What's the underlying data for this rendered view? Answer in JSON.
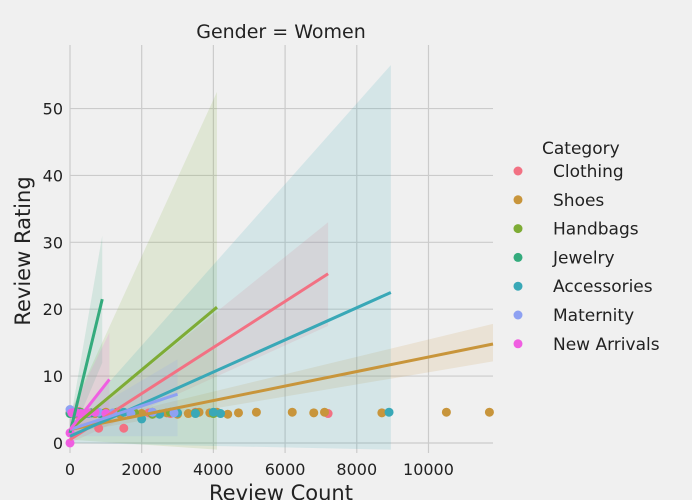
{
  "chart_data": {
    "type": "scatter",
    "title": "Gender = Women",
    "xlabel": "Review Count",
    "ylabel": "Review Rating",
    "xlim": [
      0,
      11800
    ],
    "ylim": [
      -1.5,
      59.5
    ],
    "xticks": [
      0,
      2000,
      4000,
      6000,
      8000,
      10000
    ],
    "yticks": [
      0,
      10,
      20,
      30,
      40,
      50
    ],
    "grid": true,
    "legend_title": "Category",
    "legend_position": "right",
    "series": [
      {
        "name": "Clothing",
        "color": "#f27183",
        "points": [
          [
            0,
            4.5
          ],
          [
            80,
            4.6
          ],
          [
            150,
            4.3
          ],
          [
            250,
            4.7
          ],
          [
            400,
            4.4
          ],
          [
            600,
            4.5
          ],
          [
            800,
            2.2
          ],
          [
            1000,
            4.5
          ],
          [
            1200,
            4.4
          ],
          [
            1500,
            2.2
          ],
          [
            1700,
            4.3
          ],
          [
            2200,
            4.5
          ],
          [
            2800,
            4.4
          ],
          [
            3500,
            4.6
          ],
          [
            7200,
            4.4
          ]
        ],
        "fit": [
          [
            0,
            0.5
          ],
          [
            7200,
            25.3
          ]
        ],
        "band": {
          "x": [
            0,
            7200
          ],
          "lower": [
            0.0,
            17.5
          ],
          "upper": [
            2.0,
            33.0
          ]
        }
      },
      {
        "name": "Shoes",
        "color": "#c8953b",
        "points": [
          [
            300,
            4.5
          ],
          [
            700,
            4.4
          ],
          [
            1000,
            4.6
          ],
          [
            1400,
            4.3
          ],
          [
            1700,
            4.5
          ],
          [
            2000,
            4.4
          ],
          [
            2300,
            4.6
          ],
          [
            2700,
            4.5
          ],
          [
            3000,
            4.3
          ],
          [
            3300,
            4.4
          ],
          [
            3600,
            4.6
          ],
          [
            3900,
            4.5
          ],
          [
            4100,
            4.6
          ],
          [
            4400,
            4.3
          ],
          [
            4700,
            4.5
          ],
          [
            5200,
            4.6
          ],
          [
            6200,
            4.6
          ],
          [
            6800,
            4.5
          ],
          [
            7100,
            4.6
          ],
          [
            8700,
            4.5
          ],
          [
            10500,
            4.6
          ],
          [
            11700,
            4.6
          ]
        ],
        "fit": [
          [
            0,
            2.0
          ],
          [
            11800,
            14.8
          ]
        ],
        "band": {
          "x": [
            0,
            11800
          ],
          "lower": [
            1.5,
            12.2
          ],
          "upper": [
            2.5,
            17.8
          ]
        }
      },
      {
        "name": "Handbags",
        "color": "#7eac35",
        "points": [
          [
            100,
            4.4
          ],
          [
            300,
            4.6
          ],
          [
            600,
            4.5
          ],
          [
            900,
            4.4
          ],
          [
            1300,
            4.6
          ],
          [
            1800,
            4.5
          ],
          [
            2300,
            4.3
          ],
          [
            2800,
            4.6
          ],
          [
            3500,
            4.5
          ],
          [
            4000,
            4.4
          ]
        ],
        "fit": [
          [
            0,
            2.0
          ],
          [
            4100,
            20.3
          ]
        ],
        "band": {
          "x": [
            0,
            4100
          ],
          "lower": [
            0.5,
            -1.0
          ],
          "upper": [
            4.5,
            52.5
          ]
        }
      },
      {
        "name": "Jewelry",
        "color": "#34ab7d",
        "points": [
          [
            0,
            4.4
          ],
          [
            100,
            4.5
          ],
          [
            250,
            4.6
          ],
          [
            400,
            4.4
          ],
          [
            600,
            4.5
          ],
          [
            850,
            4.4
          ]
        ],
        "fit": [
          [
            0,
            1.5
          ],
          [
            900,
            21.5
          ]
        ],
        "band": {
          "x": [
            0,
            900
          ],
          "lower": [
            0.5,
            12.0
          ],
          "upper": [
            3.0,
            31.0
          ]
        }
      },
      {
        "name": "Accessories",
        "color": "#39a8b7",
        "points": [
          [
            150,
            4.5
          ],
          [
            500,
            4.4
          ],
          [
            1000,
            4.3
          ],
          [
            1500,
            4.6
          ],
          [
            2000,
            3.6
          ],
          [
            2500,
            4.3
          ],
          [
            3000,
            4.5
          ],
          [
            3500,
            4.4
          ],
          [
            4000,
            4.6
          ],
          [
            4200,
            4.4
          ],
          [
            8900,
            4.6
          ]
        ],
        "fit": [
          [
            0,
            1.0
          ],
          [
            8950,
            22.5
          ]
        ],
        "band": {
          "x": [
            0,
            8950
          ],
          "lower": [
            0.0,
            -1.0
          ],
          "upper": [
            2.5,
            56.5
          ]
        }
      },
      {
        "name": "Maternity",
        "color": "#8ea1f2",
        "points": [
          [
            0,
            5.0
          ],
          [
            150,
            4.6
          ],
          [
            400,
            4.4
          ],
          [
            800,
            4.6
          ],
          [
            1200,
            4.5
          ],
          [
            1700,
            4.4
          ],
          [
            2300,
            4.6
          ],
          [
            2900,
            4.5
          ]
        ],
        "fit": [
          [
            0,
            2.0
          ],
          [
            3000,
            7.3
          ]
        ],
        "band": {
          "x": [
            0,
            3000
          ],
          "lower": [
            1.0,
            1.0
          ],
          "upper": [
            3.0,
            12.5
          ]
        }
      },
      {
        "name": "New Arrivals",
        "color": "#f05ee1",
        "points": [
          [
            0,
            0.0
          ],
          [
            0,
            1.5
          ],
          [
            50,
            4.5
          ],
          [
            150,
            4.6
          ],
          [
            300,
            4.4
          ],
          [
            500,
            4.5
          ],
          [
            700,
            4.6
          ],
          [
            1000,
            4.4
          ]
        ],
        "fit": [
          [
            0,
            2.0
          ],
          [
            1100,
            9.5
          ]
        ],
        "band": {
          "x": [
            0,
            1100
          ],
          "lower": [
            0.5,
            4.0
          ],
          "upper": [
            4.5,
            16.5
          ]
        }
      }
    ]
  }
}
